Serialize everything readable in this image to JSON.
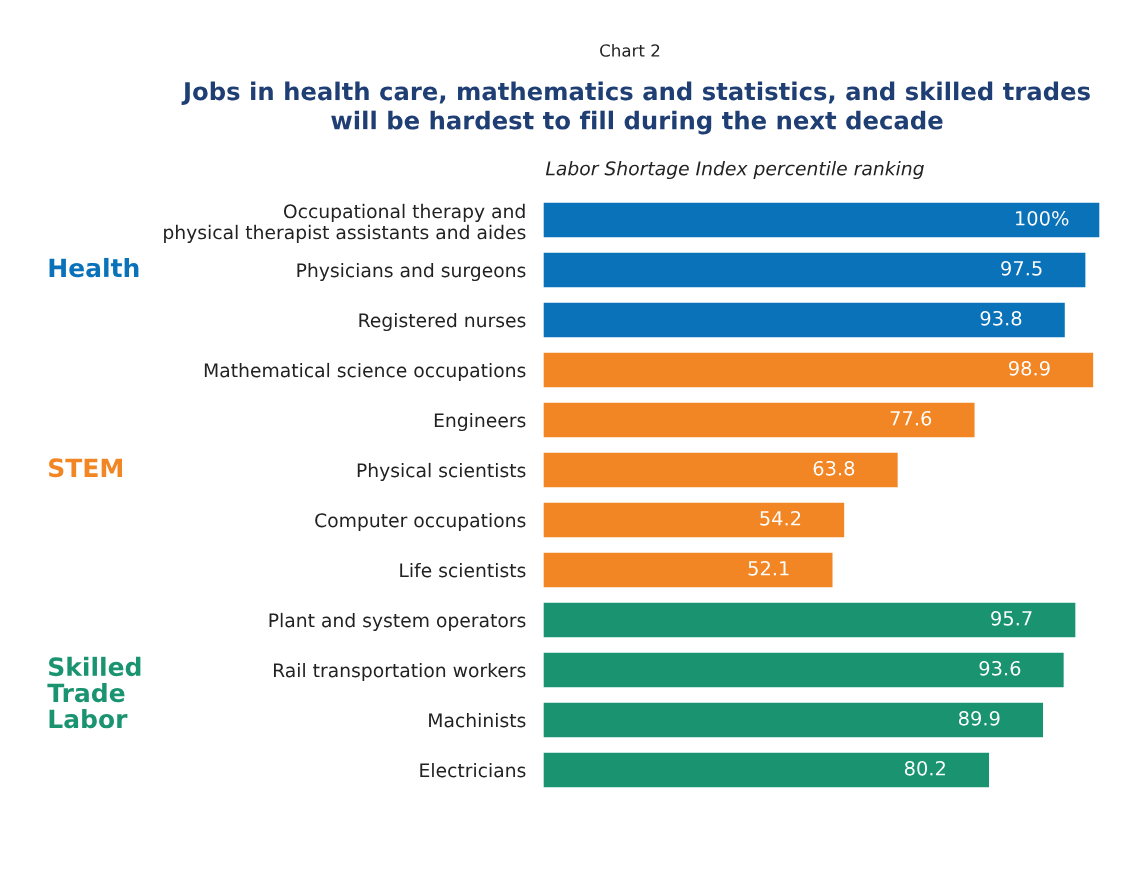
{
  "chart_data": {
    "type": "bar",
    "orientation": "horizontal",
    "annotations": [
      "Chart 2"
    ],
    "title": "Jobs in health care, mathematics and statistics, and skilled trades\nwill be hardest to fill during the next decade",
    "subtitle": "Labor Shortage Index percentile ranking",
    "categories": [
      "Occupational therapy and\nphysical therapist assistants and aides",
      "Physicians and surgeons",
      "Registered nurses",
      "Mathematical science occupations",
      "Engineers",
      "Physical scientists",
      "Computer occupations",
      "Life scientists",
      "Plant and system operators",
      "Rail transportation workers",
      "Machinists",
      "Electricians"
    ],
    "series": [
      {
        "name": "Health",
        "color": "#0a72b8",
        "values": [
          100,
          97.5,
          93.8,
          null,
          null,
          null,
          null,
          null,
          null,
          null,
          null,
          null
        ],
        "value_labels": [
          "100%",
          "97.5",
          "93.8",
          null,
          null,
          null,
          null,
          null,
          null,
          null,
          null,
          null
        ]
      },
      {
        "name": "STEM",
        "color": "#f28524",
        "values": [
          null,
          null,
          null,
          98.9,
          77.6,
          63.8,
          54.2,
          52.1,
          null,
          null,
          null,
          null
        ],
        "value_labels": [
          null,
          null,
          null,
          "98.9",
          "77.6",
          "63.8",
          "54.2",
          "52.1",
          null,
          null,
          null,
          null
        ]
      },
      {
        "name": "Skilled Trade Labor",
        "color": "#1a9470",
        "values": [
          null,
          null,
          null,
          null,
          null,
          null,
          null,
          null,
          95.7,
          93.6,
          89.9,
          80.2
        ],
        "value_labels": [
          null,
          null,
          null,
          null,
          null,
          null,
          null,
          null,
          "95.7",
          "93.6",
          "89.9",
          "80.2"
        ]
      }
    ]
  }
}
